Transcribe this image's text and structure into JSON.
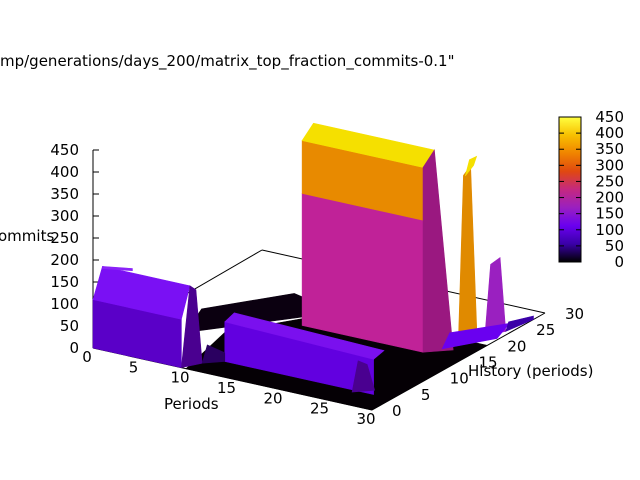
{
  "chart_data": {
    "type": "surface3d",
    "title": "mp/generations/days_200/matrix_top_fraction_commits-0.1\"",
    "xlabel": "Periods",
    "ylabel": "History (periods)",
    "zlabel": "ommits",
    "xlim": [
      0,
      30
    ],
    "ylim": [
      0,
      30
    ],
    "zlim": [
      0,
      450
    ],
    "xticks": [
      "0",
      "5",
      "10",
      "15",
      "20",
      "25",
      "30"
    ],
    "yticks": [
      "0",
      "5",
      "10",
      "15",
      "20",
      "25",
      "30"
    ],
    "zticks": [
      "0",
      "50",
      "100",
      "150",
      "200",
      "250",
      "300",
      "350",
      "400",
      "450"
    ],
    "colorbar": {
      "ticks": [
        "0",
        "50",
        "100",
        "150",
        "200",
        "250",
        "300",
        "350",
        "400",
        "450"
      ],
      "range": [
        0,
        450
      ],
      "colors": [
        "#000000",
        "#3a00a8",
        "#6a00f0",
        "#9a20c0",
        "#c42880",
        "#e04810",
        "#f08400",
        "#f8c000",
        "#ffff40"
      ]
    },
    "grid": false,
    "surface": {
      "x_samples": [
        0,
        5,
        8,
        9,
        10,
        11,
        12,
        15,
        20,
        23,
        26,
        28,
        30
      ],
      "ridges": [
        {
          "x_range": [
            0,
            10
          ],
          "y": 0,
          "z": 110
        },
        {
          "x_range": [
            0,
            10
          ],
          "y": 0,
          "z": 180
        },
        {
          "x_range": [
            12,
            30
          ],
          "y": [
            0,
            4
          ],
          "z": 90
        },
        {
          "x_range": [
            12,
            30
          ],
          "y": [
            14,
            16
          ],
          "z": 330
        },
        {
          "x_range": [
            12,
            30
          ],
          "y": [
            14,
            16
          ],
          "z": 450
        },
        {
          "x_range": [
            24,
            30
          ],
          "y": [
            22,
            24
          ],
          "z": 380
        },
        {
          "x_range": [
            24,
            30
          ],
          "y": [
            26,
            28
          ],
          "z": 200
        }
      ],
      "floor_z": 0
    }
  }
}
